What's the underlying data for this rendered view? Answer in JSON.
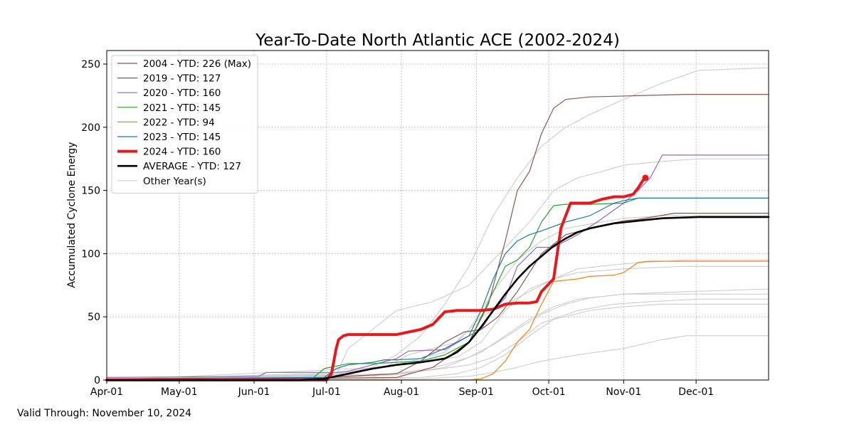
{
  "chart_data": {
    "type": "line",
    "title": "Year-To-Date North Atlantic ACE (2002-2024)",
    "ylabel": "Accumulated Cyclone Energy",
    "xlabel": "",
    "x_unit": "day of season (0 = Apr-01)",
    "xlim": [
      0,
      274
    ],
    "ylim": [
      0,
      260
    ],
    "yticks": [
      0,
      50,
      100,
      150,
      200,
      250
    ],
    "xticks": [
      {
        "day": 0,
        "label": "Apr-01"
      },
      {
        "day": 30,
        "label": "May-01"
      },
      {
        "day": 61,
        "label": "Jun-01"
      },
      {
        "day": 91,
        "label": "Jul-01"
      },
      {
        "day": 122,
        "label": "Aug-01"
      },
      {
        "day": 153,
        "label": "Sep-01"
      },
      {
        "day": 183,
        "label": "Oct-01"
      },
      {
        "day": 214,
        "label": "Nov-01"
      },
      {
        "day": 244,
        "label": "Dec-01"
      }
    ],
    "grid": true,
    "legend_position": "top-left",
    "series": [
      {
        "name": "2004 - YTD: 226 (Max)",
        "color": "#8c564b",
        "width": 1.2,
        "x": [
          0,
          120,
          135,
          150,
          158,
          165,
          170,
          175,
          180,
          185,
          190,
          200,
          220,
          240,
          274
        ],
        "y": [
          0,
          2,
          10,
          30,
          60,
          110,
          150,
          165,
          195,
          215,
          222,
          224,
          225,
          226,
          226
        ]
      },
      {
        "name": "2019 - YTD: 127",
        "color": "#8c564b",
        "width": 1.2,
        "x": [
          0,
          60,
          90,
          120,
          130,
          140,
          148,
          155,
          162,
          170,
          180,
          190,
          200,
          214,
          220,
          235,
          274
        ],
        "y": [
          0,
          1,
          2,
          5,
          15,
          30,
          38,
          40,
          50,
          70,
          100,
          115,
          120,
          126,
          127,
          132,
          132
        ]
      },
      {
        "name": "2020 - YTD: 160",
        "color": "#9467bd",
        "width": 1.2,
        "x": [
          0,
          63,
          66,
          95,
          100,
          120,
          125,
          140,
          150,
          155,
          160,
          165,
          170,
          178,
          185,
          195,
          203,
          214,
          220,
          225,
          230,
          240,
          274
        ],
        "y": [
          2,
          3,
          6,
          6,
          7,
          17,
          23,
          24,
          35,
          40,
          55,
          65,
          90,
          105,
          105,
          115,
          125,
          140,
          150,
          160,
          178,
          178,
          178
        ]
      },
      {
        "name": "2021 - YTD: 145",
        "color": "#2ca02c",
        "width": 1.2,
        "x": [
          0,
          85,
          90,
          100,
          110,
          120,
          130,
          140,
          150,
          155,
          160,
          165,
          170,
          175,
          180,
          185,
          190,
          200,
          214,
          220,
          274
        ],
        "y": [
          0,
          1,
          9,
          13,
          13,
          14,
          15,
          20,
          30,
          50,
          70,
          90,
          95,
          105,
          125,
          138,
          139,
          139,
          140,
          144,
          144
        ]
      },
      {
        "name": "2022 - YTD: 94",
        "color": "#ff7f0e",
        "width": 1.2,
        "x": [
          0,
          150,
          155,
          160,
          165,
          170,
          175,
          180,
          185,
          195,
          200,
          210,
          214,
          220,
          224,
          274
        ],
        "y": [
          0,
          0,
          1,
          5,
          15,
          30,
          40,
          60,
          78,
          80,
          82,
          83,
          85,
          93,
          94,
          94
        ]
      },
      {
        "name": "2023 - YTD: 145",
        "color": "#1f77b4",
        "width": 1.2,
        "x": [
          0,
          90,
          95,
          100,
          110,
          115,
          120,
          130,
          140,
          150,
          155,
          160,
          165,
          170,
          175,
          180,
          190,
          200,
          210,
          214,
          220,
          274
        ],
        "y": [
          1,
          2,
          9,
          12,
          14,
          16,
          16,
          17,
          25,
          35,
          55,
          80,
          100,
          110,
          115,
          118,
          125,
          130,
          140,
          142,
          144,
          144
        ]
      },
      {
        "name": "2024 - YTD: 160",
        "color": "#e41a1c",
        "width": 4,
        "x": [
          0,
          89,
          91,
          93,
          94,
          95,
          96,
          98,
          100,
          105,
          110,
          115,
          120,
          125,
          130,
          135,
          140,
          145,
          150,
          155,
          160,
          165,
          170,
          175,
          178,
          180,
          185,
          188,
          192,
          195,
          200,
          205,
          210,
          214,
          218,
          220,
          221,
          222,
          223
        ],
        "y": [
          0,
          0,
          0,
          5,
          15,
          25,
          32,
          35,
          36,
          36,
          36,
          36,
          36,
          38,
          40,
          44,
          54,
          55,
          55,
          55,
          56,
          60,
          61,
          61,
          62,
          70,
          80,
          120,
          140,
          140,
          140,
          143,
          145,
          145,
          147,
          152,
          155,
          158,
          160
        ],
        "end_marker": true
      },
      {
        "name": "AVERAGE - YTD: 127",
        "color": "#000000",
        "width": 2.6,
        "x": [
          0,
          60,
          80,
          90,
          100,
          110,
          120,
          130,
          140,
          145,
          150,
          155,
          160,
          165,
          170,
          175,
          180,
          185,
          190,
          195,
          200,
          205,
          210,
          220,
          230,
          245,
          274
        ],
        "y": [
          0,
          0,
          0,
          1,
          5,
          9,
          12,
          14,
          17,
          22,
          30,
          42,
          55,
          68,
          80,
          90,
          98,
          106,
          112,
          117,
          120,
          122,
          124,
          126,
          128,
          129,
          129
        ]
      },
      {
        "name": "Other Year(s)",
        "color": "#c8c8c8",
        "width": 1,
        "legend": true,
        "x": [
          0,
          90,
          110,
          120,
          130,
          140,
          150,
          160,
          170,
          180,
          190,
          200,
          214,
          230,
          245,
          274
        ],
        "y": [
          0,
          3,
          10,
          20,
          35,
          60,
          90,
          130,
          160,
          185,
          200,
          210,
          222,
          235,
          245,
          247
        ]
      },
      {
        "name": "Other Year(s)",
        "color": "#c8c8c8",
        "width": 1,
        "legend": false,
        "x": [
          0,
          95,
          100,
          110,
          120,
          135,
          150,
          165,
          175,
          185,
          195,
          205,
          214,
          230,
          245,
          274
        ],
        "y": [
          0,
          4,
          25,
          40,
          55,
          62,
          75,
          105,
          125,
          150,
          160,
          165,
          170,
          173,
          175,
          175
        ]
      },
      {
        "name": "Other Year(s)",
        "color": "#c8c8c8",
        "width": 1,
        "legend": false,
        "x": [
          0,
          100,
          115,
          125,
          135,
          145,
          155,
          165,
          175,
          185,
          195,
          214,
          240,
          274
        ],
        "y": [
          0,
          5,
          10,
          20,
          25,
          30,
          50,
          60,
          70,
          80,
          88,
          92,
          95,
          95
        ]
      },
      {
        "name": "Other Year(s)",
        "color": "#c8c8c8",
        "width": 1,
        "legend": false,
        "x": [
          0,
          110,
          130,
          140,
          150,
          160,
          170,
          180,
          190,
          200,
          214,
          240,
          274
        ],
        "y": [
          0,
          3,
          8,
          12,
          18,
          28,
          40,
          52,
          60,
          65,
          68,
          70,
          72
        ]
      },
      {
        "name": "Other Year(s)",
        "color": "#c8c8c8",
        "width": 1,
        "legend": false,
        "x": [
          0,
          120,
          135,
          150,
          160,
          170,
          180,
          195,
          210,
          225,
          245,
          274
        ],
        "y": [
          0,
          5,
          8,
          12,
          18,
          30,
          45,
          55,
          60,
          62,
          64,
          64
        ]
      },
      {
        "name": "Other Year(s)",
        "color": "#c8c8c8",
        "width": 1,
        "legend": false,
        "x": [
          0,
          130,
          145,
          155,
          165,
          175,
          185,
          200,
          214,
          230,
          274
        ],
        "y": [
          0,
          2,
          5,
          10,
          20,
          35,
          48,
          55,
          58,
          60,
          60
        ]
      },
      {
        "name": "Other Year(s)",
        "color": "#c8c8c8",
        "width": 1,
        "legend": false,
        "x": [
          0,
          130,
          150,
          160,
          170,
          180,
          195,
          214,
          230,
          240,
          274
        ],
        "y": [
          0,
          1,
          3,
          6,
          10,
          15,
          20,
          25,
          32,
          35,
          35
        ]
      },
      {
        "name": "Other Year(s)",
        "color": "#c8c8c8",
        "width": 1,
        "legend": false,
        "x": [
          0,
          100,
          120,
          140,
          150,
          160,
          170,
          180,
          190,
          205,
          214,
          230,
          274
        ],
        "y": [
          0,
          6,
          12,
          22,
          40,
          70,
          95,
          110,
          120,
          125,
          128,
          130,
          130
        ]
      },
      {
        "name": "Other Year(s)",
        "color": "#c8c8c8",
        "width": 1,
        "legend": false,
        "x": [
          0,
          115,
          130,
          145,
          155,
          165,
          175,
          185,
          195,
          214,
          240,
          274
        ],
        "y": [
          0,
          10,
          15,
          18,
          30,
          55,
          72,
          80,
          85,
          88,
          90,
          90
        ]
      },
      {
        "name": "Other Year(s)",
        "color": "#c8c8c8",
        "width": 1,
        "legend": false,
        "x": [
          0,
          120,
          140,
          155,
          165,
          175,
          185,
          195,
          214,
          274
        ],
        "y": [
          0,
          4,
          10,
          22,
          35,
          48,
          58,
          64,
          68,
          68
        ]
      }
    ]
  },
  "footer": {
    "valid_through": "Valid Through: November 10, 2024"
  }
}
